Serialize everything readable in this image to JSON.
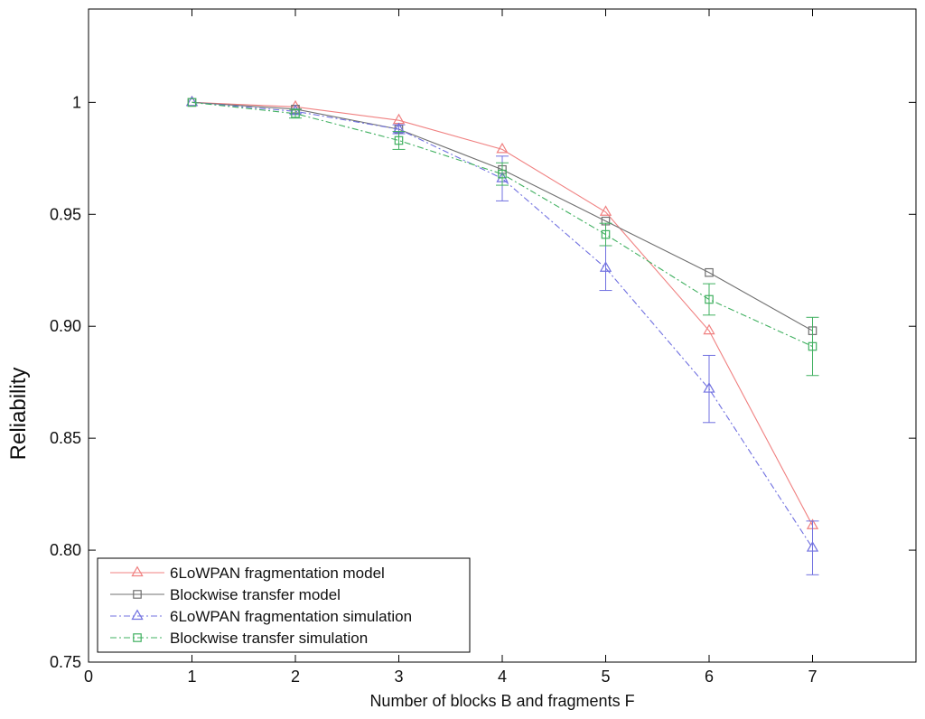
{
  "chart_data": {
    "type": "line",
    "title": "",
    "xlabel": "Number of blocks B and fragments F",
    "ylabel": "Reliability",
    "xlim": [
      0,
      8
    ],
    "ylim": [
      0.75,
      1.0417
    ],
    "xticks": [
      0,
      1,
      2,
      3,
      4,
      5,
      6,
      7
    ],
    "xtick_labels": [
      "0",
      "1",
      "2",
      "3",
      "4",
      "5",
      "6",
      "7"
    ],
    "yticks": [
      0.75,
      0.8,
      0.85,
      0.9,
      0.95,
      1.0
    ],
    "ytick_labels": [
      "0.75",
      "0.80",
      "0.85",
      "0.90",
      "0.95",
      "1"
    ],
    "grid": false,
    "legend_position": "bottom-left",
    "series": [
      {
        "name": "6LoWPAN fragmentation model",
        "color": "#f08080",
        "marker": "triangle",
        "line_style": "solid",
        "x": [
          1,
          2,
          3,
          4,
          5,
          6,
          7
        ],
        "y": [
          1.0,
          0.998,
          0.992,
          0.979,
          0.951,
          0.898,
          0.811
        ]
      },
      {
        "name": "Blockwise transfer model",
        "color": "#707070",
        "marker": "square",
        "line_style": "solid",
        "x": [
          1,
          2,
          3,
          4,
          5,
          6,
          7
        ],
        "y": [
          1.0,
          0.997,
          0.988,
          0.97,
          0.947,
          0.924,
          0.898
        ]
      },
      {
        "name": "6LoWPAN fragmentation simulation",
        "color": "#7070e0",
        "marker": "triangle",
        "line_style": "dashdot",
        "x": [
          1,
          2,
          3,
          4,
          5,
          6,
          7
        ],
        "y": [
          1.0,
          0.996,
          0.988,
          0.966,
          0.926,
          0.872,
          0.801
        ],
        "error": [
          0.0,
          0.001,
          0.002,
          0.01,
          0.01,
          0.015,
          0.012
        ]
      },
      {
        "name": "Blockwise transfer simulation",
        "color": "#40b060",
        "marker": "square",
        "line_style": "dashdot",
        "x": [
          1,
          2,
          3,
          4,
          5,
          6,
          7
        ],
        "y": [
          1.0,
          0.995,
          0.983,
          0.968,
          0.941,
          0.912,
          0.891
        ],
        "error": [
          0.0,
          0.002,
          0.004,
          0.005,
          0.005,
          0.007,
          0.013
        ]
      }
    ]
  }
}
